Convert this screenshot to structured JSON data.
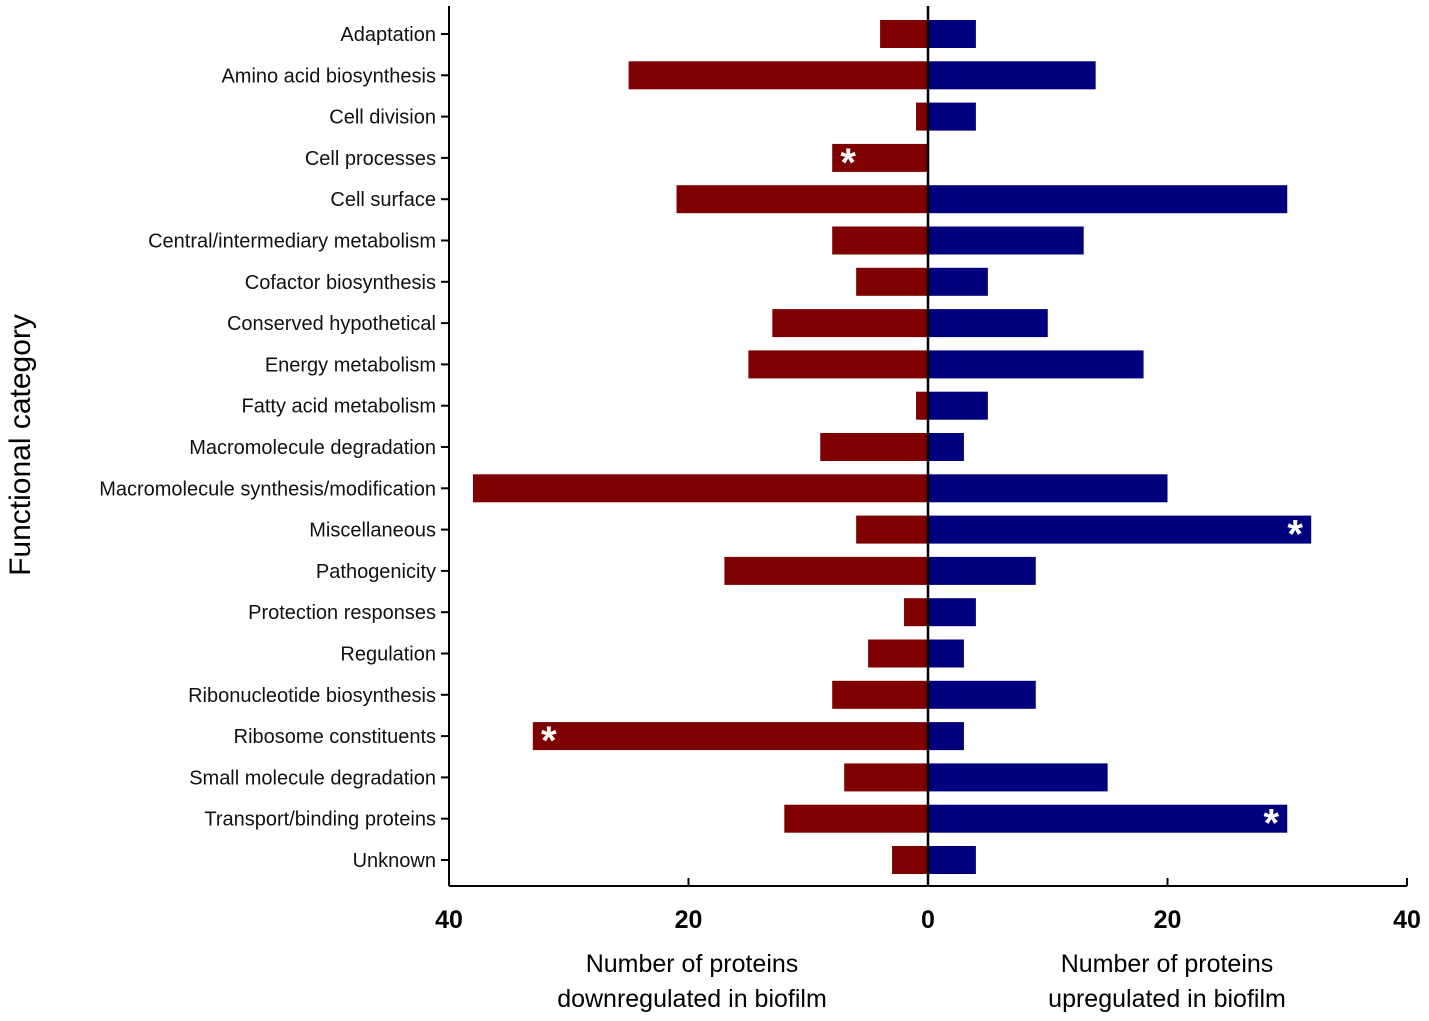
{
  "chart_data": {
    "type": "bar",
    "orientation": "horizontal-diverging",
    "ylabel": "Functional category",
    "xlim": [
      -40,
      40
    ],
    "xticks": [
      {
        "value": -40,
        "label": "40"
      },
      {
        "value": -20,
        "label": "20"
      },
      {
        "value": 0,
        "label": "0"
      },
      {
        "value": 20,
        "label": "20"
      },
      {
        "value": 40,
        "label": "40"
      }
    ],
    "xlabel_left": [
      "Number of proteins",
      "downregulated in biofilm"
    ],
    "xlabel_right": [
      "Number of proteins",
      "upregulated in biofilm"
    ],
    "colors": {
      "down": "#7f0000",
      "up": "#00007f"
    },
    "significance_marker": "*",
    "categories": [
      "Adaptation",
      "Amino acid biosynthesis",
      "Cell division",
      "Cell processes",
      "Cell surface",
      "Central/intermediary metabolism",
      "Cofactor biosynthesis",
      "Conserved hypothetical",
      "Energy metabolism",
      "Fatty acid metabolism",
      "Macromolecule degradation",
      "Macromolecule synthesis/modification",
      "Miscellaneous",
      "Pathogenicity",
      "Protection responses",
      "Regulation",
      "Ribonucleotide biosynthesis",
      "Ribosome constituents",
      "Small molecule degradation",
      "Transport/binding proteins",
      "Unknown"
    ],
    "series": [
      {
        "name": "downregulated in biofilm",
        "values": [
          4,
          25,
          1,
          8,
          21,
          8,
          6,
          13,
          15,
          1,
          9,
          38,
          6,
          17,
          2,
          5,
          8,
          33,
          7,
          12,
          3
        ],
        "significant": [
          false,
          false,
          false,
          true,
          false,
          false,
          false,
          false,
          false,
          false,
          false,
          false,
          false,
          false,
          false,
          false,
          false,
          true,
          false,
          false,
          false
        ]
      },
      {
        "name": "upregulated in biofilm",
        "values": [
          4,
          14,
          4,
          0,
          30,
          13,
          5,
          10,
          18,
          5,
          3,
          20,
          32,
          9,
          4,
          3,
          9,
          3,
          15,
          30,
          4
        ],
        "significant": [
          false,
          false,
          false,
          false,
          false,
          false,
          false,
          false,
          false,
          false,
          false,
          false,
          true,
          false,
          false,
          false,
          false,
          false,
          false,
          true,
          false
        ]
      }
    ]
  }
}
